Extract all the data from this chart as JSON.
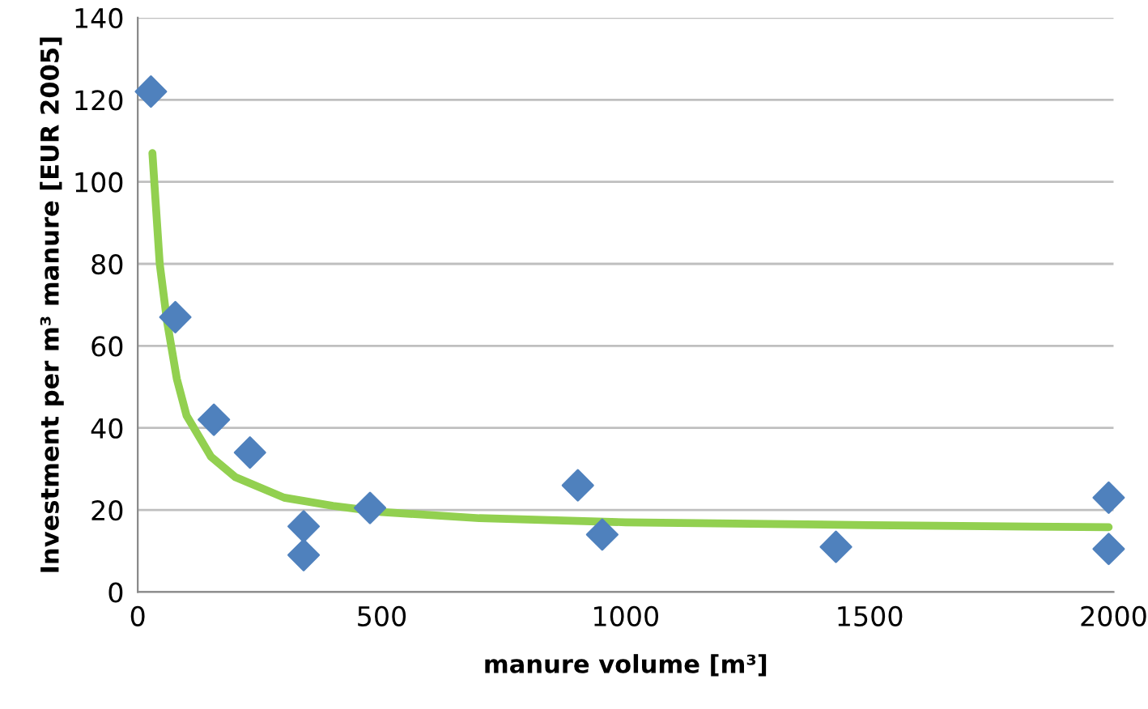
{
  "chart_data": {
    "type": "scatter",
    "xlabel": "manure volume [m³]",
    "ylabel": "Investment per m³ manure [EUR 2005]",
    "xlim": [
      0,
      2000
    ],
    "xticks": [
      0,
      500,
      1000,
      1500,
      2000
    ],
    "ylim": [
      0,
      140
    ],
    "yticks": [
      0,
      20,
      40,
      60,
      80,
      100,
      120,
      140
    ],
    "grid": "y",
    "series": [
      {
        "marker": "diamond",
        "color": "#4f81bd",
        "x": [
          27,
          77,
          156,
          230,
          340,
          340,
          476,
          902,
          952,
          1431,
          1990,
          1990
        ],
        "values": [
          122,
          67,
          42,
          34,
          16,
          9,
          20.5,
          26,
          14,
          11,
          23,
          10.5
        ]
      },
      {
        "type": "line",
        "marker": "none",
        "color": "#92d050",
        "line_style": "solid",
        "x": [
          30,
          45,
          60,
          80,
          100,
          150,
          200,
          300,
          400,
          500,
          700,
          1000,
          1500,
          1990
        ],
        "values": [
          107,
          80,
          66,
          52,
          43,
          33,
          28,
          23,
          21,
          19.5,
          18,
          17,
          16.3,
          15.8
        ]
      }
    ]
  }
}
